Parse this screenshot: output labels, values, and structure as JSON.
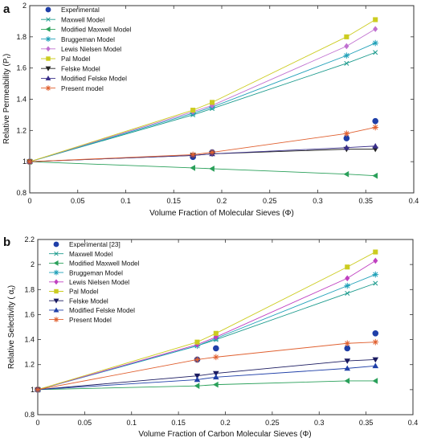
{
  "chart_data": [
    {
      "type": "line",
      "panel_label": "a",
      "xlabel": "Volume Fraction of Molecular Sieves (Φ)",
      "ylabel": "Relative Permeability (P",
      "ylabel_sub": "r",
      "ylabel_close": ")",
      "xlim": [
        0,
        0.4
      ],
      "ylim": [
        0.8,
        2
      ],
      "xticks": [
        0,
        0.05,
        0.1,
        0.15,
        0.2,
        0.25,
        0.3,
        0.35,
        0.4
      ],
      "xtick_labels": [
        "0",
        "0.05",
        "0.1",
        "0.15",
        "0.2",
        "0.25",
        "0.3",
        "0.35",
        "0.4"
      ],
      "yticks": [
        0.8,
        1,
        1.2,
        1.4,
        1.6,
        1.8,
        2
      ],
      "ytick_labels": [
        "0.8",
        "1",
        "1.2",
        "1.4",
        "1.6",
        "1.8",
        "2"
      ],
      "legend_position": "top-left",
      "series": [
        {
          "name": "Experimental",
          "color": "#1f3fa8",
          "marker": "dot",
          "line": false,
          "x": [
            0,
            0.17,
            0.19,
            0.33,
            0.36
          ],
          "y": [
            1.0,
            1.03,
            1.06,
            1.15,
            1.26
          ]
        },
        {
          "name": "Maxwell Model",
          "color": "#1a9a8c",
          "marker": "x",
          "line": true,
          "x": [
            0,
            0.17,
            0.19,
            0.33,
            0.36
          ],
          "y": [
            1.0,
            1.3,
            1.34,
            1.63,
            1.7
          ]
        },
        {
          "name": "Modified Maxwell Model",
          "color": "#2aa05a",
          "marker": "tri-left",
          "line": true,
          "x": [
            0,
            0.17,
            0.19,
            0.33,
            0.36
          ],
          "y": [
            1.0,
            0.96,
            0.955,
            0.92,
            0.91
          ]
        },
        {
          "name": "Bruggeman Model",
          "color": "#1fa0b8",
          "marker": "star",
          "line": true,
          "x": [
            0,
            0.17,
            0.19,
            0.33,
            0.36
          ],
          "y": [
            1.0,
            1.31,
            1.35,
            1.68,
            1.76
          ]
        },
        {
          "name": "Lewis Nielsen Model",
          "color": "#c070d0",
          "marker": "diamond",
          "line": true,
          "x": [
            0,
            0.17,
            0.19,
            0.33,
            0.36
          ],
          "y": [
            1.0,
            1.32,
            1.36,
            1.74,
            1.85
          ]
        },
        {
          "name": "Pal Model",
          "color": "#cccc20",
          "marker": "square",
          "line": true,
          "x": [
            0,
            0.17,
            0.19,
            0.33,
            0.36
          ],
          "y": [
            1.0,
            1.33,
            1.38,
            1.8,
            1.91
          ]
        },
        {
          "name": "Felske Model",
          "color": "#222222",
          "marker": "tri-down",
          "line": true,
          "x": [
            0,
            0.17,
            0.19,
            0.33,
            0.36
          ],
          "y": [
            1.0,
            1.04,
            1.05,
            1.08,
            1.08
          ]
        },
        {
          "name": "Modified Felske Model",
          "color": "#3a2f8a",
          "marker": "tri-up",
          "line": true,
          "x": [
            0,
            0.17,
            0.19,
            0.33,
            0.36
          ],
          "y": [
            1.0,
            1.04,
            1.05,
            1.09,
            1.1
          ]
        },
        {
          "name": "Present model",
          "color": "#e06030",
          "marker": "star",
          "line": true,
          "x": [
            0,
            0.17,
            0.19,
            0.33,
            0.36
          ],
          "y": [
            1.0,
            1.045,
            1.06,
            1.18,
            1.22
          ]
        }
      ]
    },
    {
      "type": "line",
      "panel_label": "b",
      "xlabel": "Volume Fraction of Carbon Molecular Sieves (Φ)",
      "ylabel": "Relative Selectivity ( α",
      "ylabel_sub": "r",
      "ylabel_close": ")",
      "xlim": [
        0,
        0.4
      ],
      "ylim": [
        0.8,
        2.2
      ],
      "xticks": [
        0,
        0.05,
        0.1,
        0.15,
        0.2,
        0.25,
        0.3,
        0.35,
        0.4
      ],
      "xtick_labels": [
        "0",
        "0.05",
        "0.1",
        "0.15",
        "0.2",
        "0.25",
        "0.3",
        "0.35",
        "0.4"
      ],
      "yticks": [
        0.8,
        1,
        1.2,
        1.4,
        1.6,
        1.8,
        2,
        2.2
      ],
      "ytick_labels": [
        "0.8",
        "1",
        "1.2",
        "1.4",
        "1.6",
        "1.8",
        "2",
        "2.2"
      ],
      "legend_position": "top-left",
      "series": [
        {
          "name": "Experimental [23]",
          "color": "#1f3fa8",
          "marker": "dot",
          "line": false,
          "x": [
            0,
            0.17,
            0.19,
            0.33,
            0.36
          ],
          "y": [
            1.0,
            1.24,
            1.33,
            1.33,
            1.45
          ]
        },
        {
          "name": "Maxwell Model",
          "color": "#1a9a8c",
          "marker": "x",
          "line": true,
          "x": [
            0,
            0.17,
            0.19,
            0.33,
            0.36
          ],
          "y": [
            1.0,
            1.35,
            1.4,
            1.77,
            1.85
          ]
        },
        {
          "name": "Modified Maxwell Model",
          "color": "#2aa05a",
          "marker": "tri-left",
          "line": true,
          "x": [
            0,
            0.17,
            0.19,
            0.33,
            0.36
          ],
          "y": [
            1.0,
            1.03,
            1.04,
            1.07,
            1.07
          ]
        },
        {
          "name": "Bruggeman Model",
          "color": "#1fa0b8",
          "marker": "star",
          "line": true,
          "x": [
            0,
            0.17,
            0.19,
            0.33,
            0.36
          ],
          "y": [
            1.0,
            1.35,
            1.41,
            1.83,
            1.92
          ]
        },
        {
          "name": "Lewis Nielsen Model",
          "color": "#c040c0",
          "marker": "diamond",
          "line": true,
          "x": [
            0,
            0.17,
            0.19,
            0.33,
            0.36
          ],
          "y": [
            1.0,
            1.36,
            1.42,
            1.89,
            2.03
          ]
        },
        {
          "name": "Pal Model",
          "color": "#cccc20",
          "marker": "square",
          "line": true,
          "x": [
            0,
            0.17,
            0.19,
            0.33,
            0.36
          ],
          "y": [
            1.0,
            1.38,
            1.45,
            1.98,
            2.1
          ]
        },
        {
          "name": "Felske Model",
          "color": "#1a1a60",
          "marker": "tri-down",
          "line": true,
          "x": [
            0,
            0.17,
            0.19,
            0.33,
            0.36
          ],
          "y": [
            1.0,
            1.11,
            1.13,
            1.23,
            1.24
          ]
        },
        {
          "name": "Modified Felske Model",
          "color": "#1f3fa8",
          "marker": "tri-up",
          "line": true,
          "x": [
            0,
            0.17,
            0.19,
            0.33,
            0.36
          ],
          "y": [
            1.0,
            1.08,
            1.1,
            1.17,
            1.19
          ]
        },
        {
          "name": "Present Model",
          "color": "#e06030",
          "marker": "star",
          "line": true,
          "x": [
            0,
            0.17,
            0.19,
            0.33,
            0.36
          ],
          "y": [
            1.0,
            1.24,
            1.26,
            1.37,
            1.38
          ]
        }
      ]
    }
  ]
}
